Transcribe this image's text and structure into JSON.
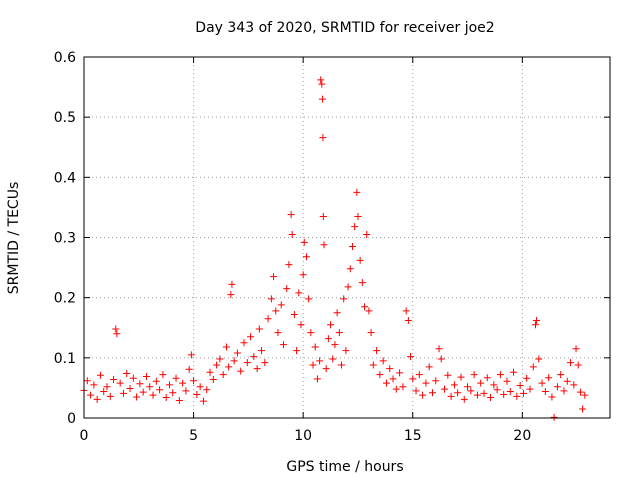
{
  "chart_data": {
    "type": "scatter",
    "title": "Day 343 of 2020, SRMTID for receiver joe2",
    "xlabel": "GPS time / hours",
    "ylabel": "SRMTID / TECUs",
    "xlim": [
      0,
      24
    ],
    "ylim": [
      0,
      0.6
    ],
    "xticks": [
      "0",
      "5",
      "10",
      "15",
      "20"
    ],
    "xtick_values": [
      0,
      5,
      10,
      15,
      20
    ],
    "yticks": [
      "0",
      "0.1",
      "0.2",
      "0.3",
      "0.4",
      "0.5",
      "0.6"
    ],
    "ytick_values": [
      0,
      0.1,
      0.2,
      0.3,
      0.4,
      0.5,
      0.6
    ],
    "grid": true,
    "marker": "+",
    "color": "#ff0000",
    "series": [
      {
        "name": "SRMTID",
        "points": [
          [
            0.0,
            0.046
          ],
          [
            0.15,
            0.062
          ],
          [
            0.3,
            0.038
          ],
          [
            0.45,
            0.055
          ],
          [
            0.6,
            0.031
          ],
          [
            0.75,
            0.071
          ],
          [
            0.9,
            0.044
          ],
          [
            1.05,
            0.052
          ],
          [
            1.2,
            0.036
          ],
          [
            1.35,
            0.064
          ],
          [
            1.45,
            0.148
          ],
          [
            1.5,
            0.14
          ],
          [
            1.65,
            0.058
          ],
          [
            1.8,
            0.041
          ],
          [
            1.95,
            0.074
          ],
          [
            2.1,
            0.049
          ],
          [
            2.25,
            0.066
          ],
          [
            2.4,
            0.035
          ],
          [
            2.55,
            0.057
          ],
          [
            2.7,
            0.043
          ],
          [
            2.85,
            0.069
          ],
          [
            3.0,
            0.052
          ],
          [
            3.15,
            0.038
          ],
          [
            3.3,
            0.061
          ],
          [
            3.45,
            0.047
          ],
          [
            3.6,
            0.072
          ],
          [
            3.75,
            0.034
          ],
          [
            3.9,
            0.055
          ],
          [
            4.05,
            0.042
          ],
          [
            4.2,
            0.066
          ],
          [
            4.35,
            0.029
          ],
          [
            4.5,
            0.058
          ],
          [
            4.65,
            0.045
          ],
          [
            4.8,
            0.081
          ],
          [
            4.9,
            0.105
          ],
          [
            5.0,
            0.062
          ],
          [
            5.15,
            0.039
          ],
          [
            5.3,
            0.052
          ],
          [
            5.45,
            0.028
          ],
          [
            5.6,
            0.047
          ],
          [
            5.75,
            0.076
          ],
          [
            5.9,
            0.064
          ],
          [
            6.05,
            0.088
          ],
          [
            6.2,
            0.098
          ],
          [
            6.35,
            0.072
          ],
          [
            6.5,
            0.118
          ],
          [
            6.6,
            0.085
          ],
          [
            6.7,
            0.205
          ],
          [
            6.75,
            0.222
          ],
          [
            6.85,
            0.095
          ],
          [
            7.0,
            0.108
          ],
          [
            7.15,
            0.078
          ],
          [
            7.3,
            0.125
          ],
          [
            7.45,
            0.092
          ],
          [
            7.6,
            0.135
          ],
          [
            7.75,
            0.102
          ],
          [
            7.9,
            0.082
          ],
          [
            8.0,
            0.148
          ],
          [
            8.1,
            0.112
          ],
          [
            8.25,
            0.092
          ],
          [
            8.4,
            0.165
          ],
          [
            8.55,
            0.198
          ],
          [
            8.65,
            0.235
          ],
          [
            8.75,
            0.178
          ],
          [
            8.85,
            0.142
          ],
          [
            9.0,
            0.188
          ],
          [
            9.1,
            0.122
          ],
          [
            9.25,
            0.215
          ],
          [
            9.35,
            0.255
          ],
          [
            9.45,
            0.338
          ],
          [
            9.5,
            0.305
          ],
          [
            9.6,
            0.172
          ],
          [
            9.7,
            0.112
          ],
          [
            9.8,
            0.208
          ],
          [
            9.9,
            0.155
          ],
          [
            10.0,
            0.238
          ],
          [
            10.05,
            0.292
          ],
          [
            10.15,
            0.268
          ],
          [
            10.25,
            0.198
          ],
          [
            10.35,
            0.142
          ],
          [
            10.45,
            0.088
          ],
          [
            10.55,
            0.118
          ],
          [
            10.65,
            0.065
          ],
          [
            10.75,
            0.095
          ],
          [
            10.8,
            0.562
          ],
          [
            10.85,
            0.555
          ],
          [
            10.88,
            0.53
          ],
          [
            10.9,
            0.466
          ],
          [
            10.92,
            0.335
          ],
          [
            10.95,
            0.288
          ],
          [
            11.05,
            0.082
          ],
          [
            11.15,
            0.132
          ],
          [
            11.25,
            0.155
          ],
          [
            11.35,
            0.098
          ],
          [
            11.45,
            0.122
          ],
          [
            11.55,
            0.175
          ],
          [
            11.65,
            0.142
          ],
          [
            11.75,
            0.088
          ],
          [
            11.85,
            0.198
          ],
          [
            11.95,
            0.112
          ],
          [
            12.05,
            0.218
          ],
          [
            12.15,
            0.248
          ],
          [
            12.25,
            0.285
          ],
          [
            12.35,
            0.318
          ],
          [
            12.45,
            0.375
          ],
          [
            12.5,
            0.335
          ],
          [
            12.6,
            0.262
          ],
          [
            12.7,
            0.225
          ],
          [
            12.8,
            0.185
          ],
          [
            12.9,
            0.305
          ],
          [
            13.0,
            0.178
          ],
          [
            13.1,
            0.142
          ],
          [
            13.2,
            0.088
          ],
          [
            13.35,
            0.112
          ],
          [
            13.5,
            0.072
          ],
          [
            13.65,
            0.095
          ],
          [
            13.8,
            0.058
          ],
          [
            13.95,
            0.082
          ],
          [
            14.1,
            0.065
          ],
          [
            14.25,
            0.048
          ],
          [
            14.4,
            0.075
          ],
          [
            14.55,
            0.052
          ],
          [
            14.7,
            0.178
          ],
          [
            14.8,
            0.162
          ],
          [
            14.9,
            0.102
          ],
          [
            15.0,
            0.065
          ],
          [
            15.15,
            0.045
          ],
          [
            15.3,
            0.072
          ],
          [
            15.45,
            0.038
          ],
          [
            15.6,
            0.058
          ],
          [
            15.75,
            0.085
          ],
          [
            15.9,
            0.042
          ],
          [
            16.05,
            0.062
          ],
          [
            16.2,
            0.115
          ],
          [
            16.3,
            0.098
          ],
          [
            16.45,
            0.048
          ],
          [
            16.6,
            0.071
          ],
          [
            16.75,
            0.036
          ],
          [
            16.9,
            0.055
          ],
          [
            17.05,
            0.042
          ],
          [
            17.2,
            0.068
          ],
          [
            17.35,
            0.031
          ],
          [
            17.5,
            0.052
          ],
          [
            17.65,
            0.045
          ],
          [
            17.8,
            0.072
          ],
          [
            17.95,
            0.038
          ],
          [
            18.1,
            0.058
          ],
          [
            18.25,
            0.041
          ],
          [
            18.4,
            0.067
          ],
          [
            18.55,
            0.034
          ],
          [
            18.7,
            0.055
          ],
          [
            18.85,
            0.047
          ],
          [
            19.0,
            0.072
          ],
          [
            19.15,
            0.039
          ],
          [
            19.3,
            0.061
          ],
          [
            19.45,
            0.044
          ],
          [
            19.6,
            0.076
          ],
          [
            19.75,
            0.036
          ],
          [
            19.9,
            0.054
          ],
          [
            20.05,
            0.041
          ],
          [
            20.2,
            0.066
          ],
          [
            20.35,
            0.048
          ],
          [
            20.5,
            0.085
          ],
          [
            20.6,
            0.155
          ],
          [
            20.65,
            0.162
          ],
          [
            20.75,
            0.098
          ],
          [
            20.9,
            0.058
          ],
          [
            21.05,
            0.044
          ],
          [
            21.2,
            0.067
          ],
          [
            21.35,
            0.035
          ],
          [
            21.45,
            0.001
          ],
          [
            21.6,
            0.052
          ],
          [
            21.75,
            0.072
          ],
          [
            21.9,
            0.045
          ],
          [
            22.05,
            0.061
          ],
          [
            22.2,
            0.092
          ],
          [
            22.35,
            0.055
          ],
          [
            22.45,
            0.115
          ],
          [
            22.55,
            0.088
          ],
          [
            22.65,
            0.043
          ],
          [
            22.75,
            0.015
          ],
          [
            22.85,
            0.038
          ]
        ]
      }
    ]
  }
}
